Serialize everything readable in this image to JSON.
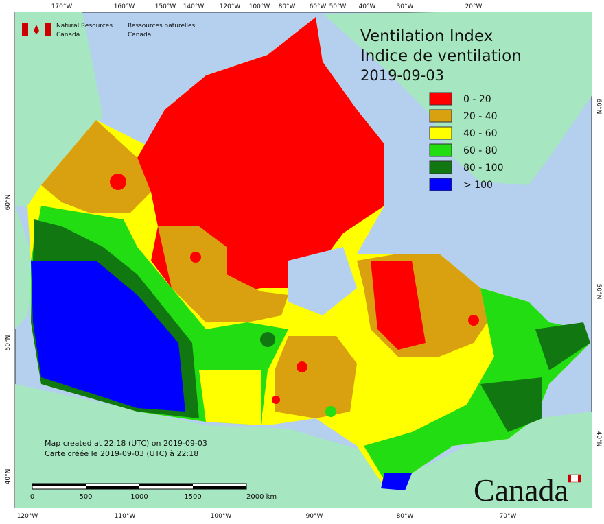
{
  "header": {
    "department_en": [
      "Natural Resources",
      "Canada"
    ],
    "department_fr": [
      "Ressources naturelles",
      "Canada"
    ]
  },
  "title": {
    "line1": "Ventilation Index",
    "line2": "Indice de ventilation",
    "date": "2019-09-03"
  },
  "legend": [
    {
      "label": "0 - 20",
      "color": "#ff0000"
    },
    {
      "label": "20 - 40",
      "color": "#d9a010"
    },
    {
      "label": "40 - 60",
      "color": "#ffff00"
    },
    {
      "label": "60 - 80",
      "color": "#22dd11"
    },
    {
      "label": "80 - 100",
      "color": "#117711"
    },
    {
      "label": "> 100",
      "color": "#0000ff"
    }
  ],
  "footer": {
    "created_en": "Map created at 22:18 (UTC) on 2019-09-03",
    "created_fr": "Carte créée le 2019-09-03 (UTC) à 22:18",
    "wordmark": "Canada"
  },
  "scale_bar": {
    "labels": [
      "0",
      "500",
      "1000",
      "1500",
      "2000 km"
    ]
  },
  "graticule": {
    "top": [
      "170°W",
      "160°W",
      "150°W",
      "140°W",
      "120°W",
      "100°W",
      "80°W",
      "60°W",
      "50°W",
      "40°W",
      "30°W",
      "20°W"
    ],
    "bottom": [
      "120°W",
      "110°W",
      "100°W",
      "90°W",
      "80°W",
      "70°W"
    ],
    "left": [
      "60°N",
      "50°N",
      "40°N"
    ],
    "right": [
      "60°N",
      "50°N",
      "40°N"
    ]
  }
}
